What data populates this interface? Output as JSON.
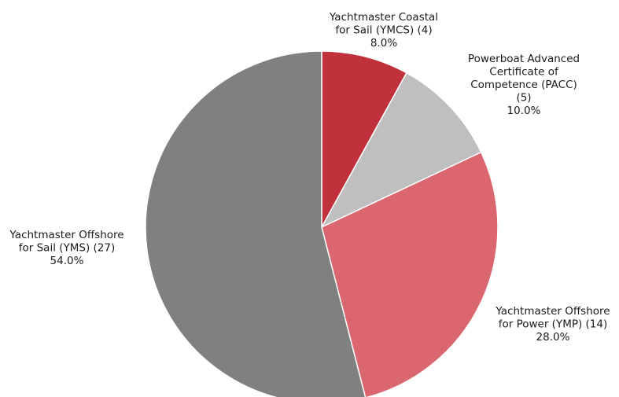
{
  "chart_data": {
    "type": "pie",
    "title": "",
    "start_angle_deg": 0,
    "direction": "clockwise",
    "slices": [
      {
        "label_lines": [
          "Yachtmaster Coastal",
          "for Sail (YMCS) (4)"
        ],
        "value": 4,
        "percent_label": "8.0%",
        "color": "#c0313b"
      },
      {
        "label_lines": [
          "Powerboat Advanced",
          "Certificate of",
          "Competence (PACC)",
          "(5)"
        ],
        "value": 5,
        "percent_label": "10.0%",
        "color": "#bfbfbf"
      },
      {
        "label_lines": [
          "Yachtmaster Offshore",
          "for Power (YMP) (14)"
        ],
        "value": 14,
        "percent_label": "28.0%",
        "color": "#da6670"
      },
      {
        "label_lines": [
          "Yachtmaster Offshore",
          "for Sail (YMS) (27)"
        ],
        "value": 27,
        "percent_label": "54.0%",
        "color": "#808080"
      }
    ]
  }
}
